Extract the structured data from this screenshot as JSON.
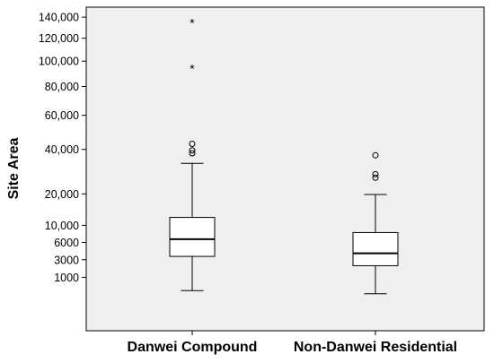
{
  "chart_data": {
    "type": "box",
    "title": "",
    "xlabel": "",
    "ylabel": "Site Area",
    "ylim": [
      -1500,
      150000
    ],
    "y_ticks": [
      1000,
      3000,
      6000,
      10000,
      20000,
      40000,
      60000,
      80000,
      100000,
      120000,
      140000
    ],
    "y_tick_labels": [
      "1000",
      "3000",
      "6000",
      "10,000",
      "20,000",
      "40,000",
      "60,000",
      "80,000",
      "100,000",
      "120,000",
      "140,000"
    ],
    "categories": [
      "Danwei Compound",
      "Non-Danwei Residential"
    ],
    "boxes": [
      {
        "category": "Danwei Compound",
        "whisker_low": 200,
        "q1": 3500,
        "median": 6700,
        "q3": 12200,
        "whisker_high": 33000,
        "outliers": [
          38000,
          39500,
          43000
        ],
        "extremes": [
          94500,
          135500
        ]
      },
      {
        "category": "Non-Danwei Residential",
        "whisker_low": 100,
        "q1": 2200,
        "median": 4000,
        "q3": 8200,
        "whisker_high": 19800,
        "outliers": [
          26500,
          28000,
          37000
        ],
        "extremes": []
      }
    ],
    "grid": false,
    "colors": {
      "plot_background": "#efefef",
      "box_fill": "#ffffff",
      "line": "#000000",
      "frame": "#000000"
    }
  }
}
